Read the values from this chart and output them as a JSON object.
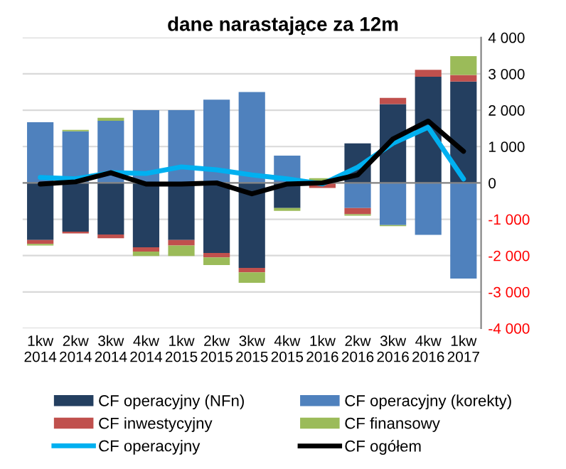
{
  "chart_data": {
    "type": "bar",
    "title": "dane narastające za 12m",
    "stacked": true,
    "categories": [
      "1kw\n2014",
      "2kw\n2014",
      "3kw\n2014",
      "4kw\n2014",
      "1kw\n2015",
      "2kw\n2015",
      "3kw\n2015",
      "4kw\n2015",
      "1kw\n2016",
      "2kw\n2016",
      "3kw\n2016",
      "4kw\n2016",
      "1kw\n2017"
    ],
    "series": [
      {
        "name": "CF operacyjny (NFn)",
        "color": "#243f60",
        "values": [
          -1570,
          -1340,
          -1420,
          -1770,
          -1570,
          -1930,
          -2340,
          -690,
          null,
          1090,
          2170,
          2920,
          2790
        ]
      },
      {
        "name": "CF operacyjny (korekty)",
        "color": "#4f81bd",
        "values": [
          1670,
          1420,
          1710,
          2000,
          2000,
          2290,
          2500,
          750,
          null,
          -690,
          -1160,
          -1430,
          -2630
        ]
      },
      {
        "name": "CF inwestycyjny",
        "color": "#c0504d",
        "values": [
          -110,
          -50,
          -100,
          -120,
          -150,
          -120,
          -120,
          0,
          -140,
          -170,
          170,
          190,
          180
        ]
      },
      {
        "name": "CF finansowy",
        "color": "#9bbb59",
        "values": [
          -40,
          40,
          80,
          -120,
          -290,
          -210,
          -290,
          -80,
          130,
          -40,
          -30,
          0,
          520
        ]
      },
      {
        "name": "CF operacyjny",
        "type": "line",
        "color": "#00b0f0",
        "values": [
          150,
          110,
          280,
          260,
          440,
          360,
          220,
          110,
          -30,
          430,
          1090,
          1530,
          110
        ]
      },
      {
        "name": "CF ogółem",
        "type": "line",
        "color": "#000000",
        "values": [
          -30,
          30,
          280,
          -30,
          -30,
          0,
          -300,
          -30,
          0,
          220,
          1210,
          1700,
          870
        ]
      }
    ],
    "ylim": [
      -4000,
      4000
    ],
    "yticks": [
      {
        "value": -4000,
        "label": "-4 000"
      },
      {
        "value": -3000,
        "label": "-3 000"
      },
      {
        "value": -2000,
        "label": "-2 000"
      },
      {
        "value": -1000,
        "label": "-1 000"
      },
      0,
      {
        "value": 1000,
        "label": "1 000"
      },
      {
        "value": 2000,
        "label": "2 000"
      },
      {
        "value": 3000,
        "label": "3 000"
      },
      {
        "value": 4000,
        "label": "4 000"
      }
    ],
    "grid": "y",
    "legend": "bottom",
    "marker": "none",
    "line_style": "solid"
  }
}
